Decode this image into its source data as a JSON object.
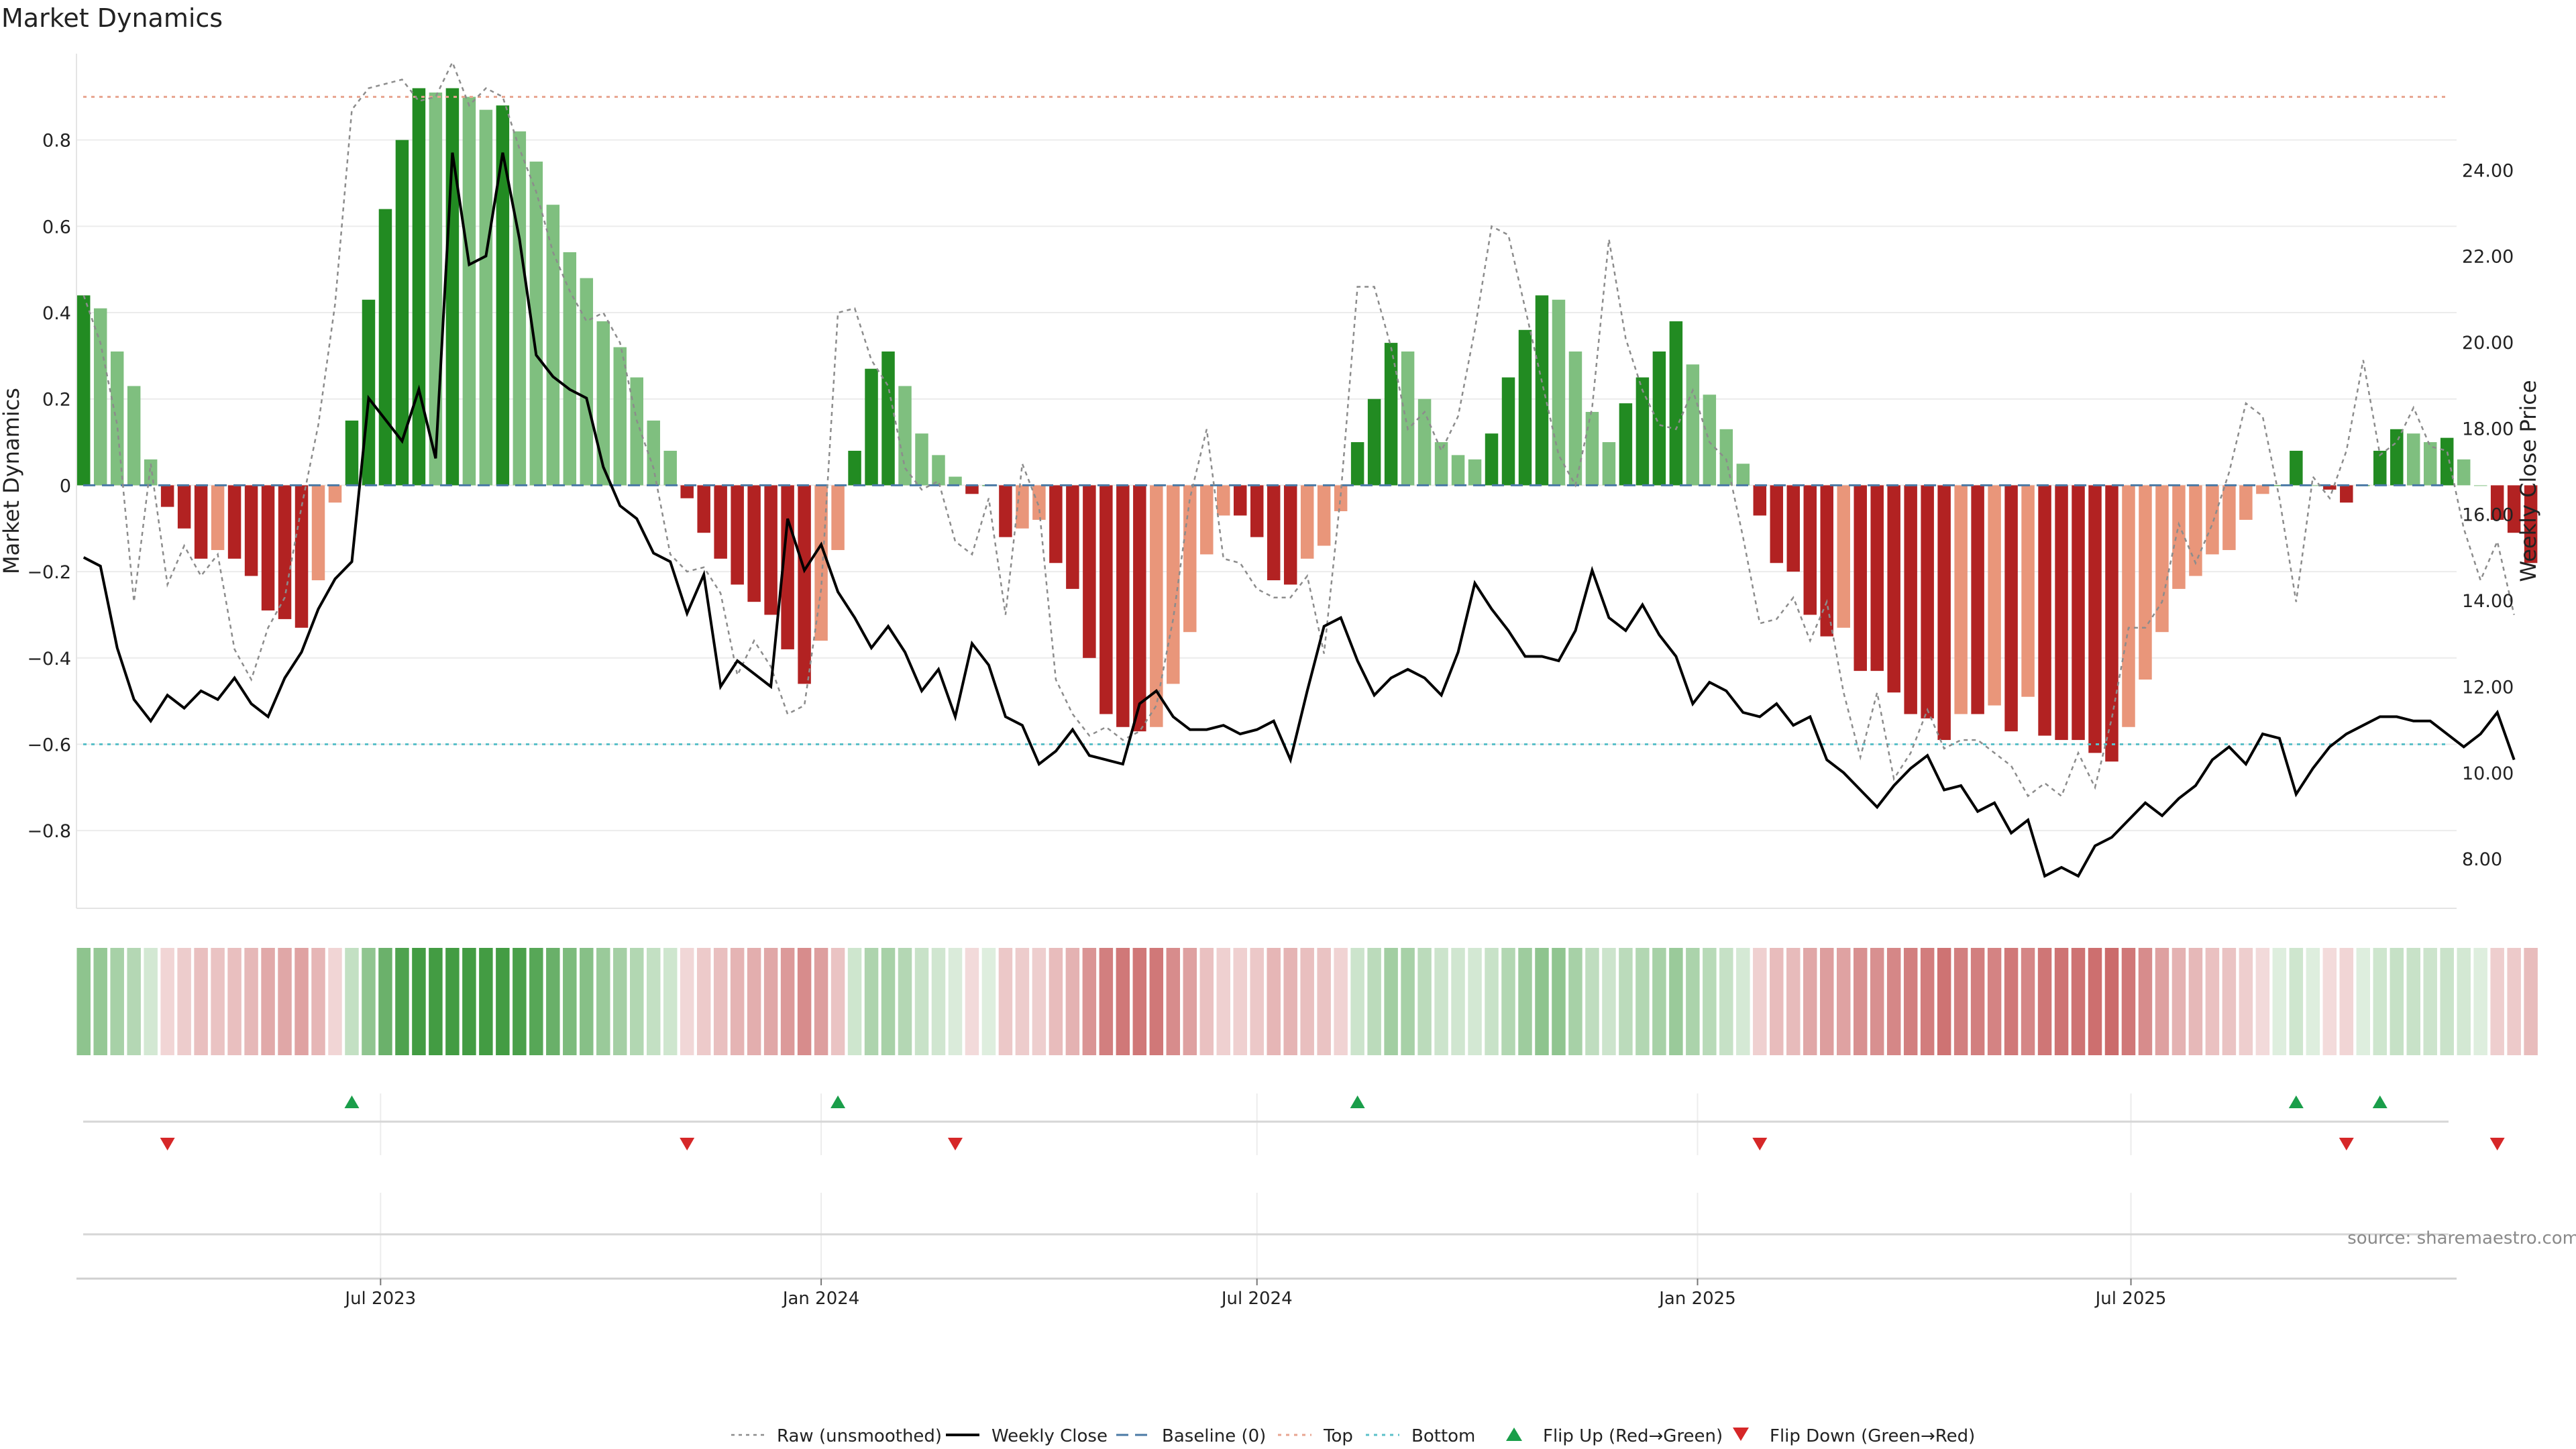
{
  "chart_data": {
    "type": "bar",
    "title": "Market Dynamics",
    "ylabel": "Market Dynamics",
    "y2label": "Weekly Close Price",
    "source_note": "source: sharemaestro.com",
    "ylim": [
      -0.98,
      1.0
    ],
    "y2lim": [
      6.85,
      26.7
    ],
    "yticks": [
      -0.8,
      -0.6,
      -0.4,
      -0.2,
      0,
      0.2,
      0.4,
      0.6,
      0.8
    ],
    "ytick_labels": [
      "−0.8",
      "−0.6",
      "−0.4",
      "−0.2",
      "0",
      "0.2",
      "0.4",
      "0.6",
      "0.8"
    ],
    "y2ticks": [
      8,
      10,
      12,
      14,
      16,
      18,
      20,
      22,
      24
    ],
    "y2tick_labels": [
      "8.00",
      "10.00",
      "12.00",
      "14.00",
      "16.00",
      "18.00",
      "20.00",
      "22.00",
      "24.00"
    ],
    "top_level": 0.9,
    "bottom_level": -0.6,
    "start_date": "2023-02-27",
    "xlim": [
      "2023-02-24",
      "2025-11-14"
    ],
    "xticks": [
      "2023-07-01",
      "2024-01-01",
      "2024-07-01",
      "2025-01-01",
      "2025-07-01"
    ],
    "xtick_labels": [
      "Jul 2023",
      "Jan 2024",
      "Jul 2024",
      "Jan 2025",
      "Jul 2025"
    ],
    "legend_position": "bottom-center",
    "legend": [
      {
        "label": "Raw (unsmoothed)",
        "style": "dotted-grey"
      },
      {
        "label": "Weekly Close",
        "style": "solid-black"
      },
      {
        "label": "Baseline (0)",
        "style": "dashed-blue"
      },
      {
        "label": "Top",
        "style": "dotted-salmon"
      },
      {
        "label": "Bottom",
        "style": "dotted-cyan"
      },
      {
        "label": "Flip Up (Red→Green)",
        "style": "triangle-up-green"
      },
      {
        "label": "Flip Down (Green→Red)",
        "style": "triangle-down-red"
      }
    ],
    "colors": {
      "strong_green": "#228b22",
      "light_green": "#7fbf7f",
      "strong_red": "#b22222",
      "light_red": "#e9967a",
      "close_line": "#000000",
      "raw_line": "#8c8c8c",
      "baseline": "#4a79a5",
      "top": "#e8a590",
      "bottom": "#5bc0c9",
      "flip_up": "#1a9e4a",
      "flip_down": "#d62728"
    },
    "series": [
      {
        "name": "Market Dynamics",
        "values": [
          0.44,
          0.41,
          0.31,
          0.23,
          0.06,
          -0.05,
          -0.1,
          -0.17,
          -0.15,
          -0.17,
          -0.21,
          -0.29,
          -0.31,
          -0.33,
          -0.22,
          -0.04,
          0.15,
          0.43,
          0.64,
          0.8,
          0.92,
          0.91,
          0.92,
          0.9,
          0.87,
          0.88,
          0.82,
          0.75,
          0.65,
          0.54,
          0.48,
          0.38,
          0.32,
          0.25,
          0.15,
          0.08,
          -0.03,
          -0.11,
          -0.17,
          -0.23,
          -0.27,
          -0.3,
          -0.38,
          -0.46,
          -0.36,
          -0.15,
          0.08,
          0.27,
          0.31,
          0.23,
          0.12,
          0.07,
          0.02,
          -0.02,
          0.0,
          -0.12,
          -0.1,
          -0.08,
          -0.18,
          -0.24,
          -0.4,
          -0.53,
          -0.56,
          -0.57,
          -0.56,
          -0.46,
          -0.34,
          -0.16,
          -0.07,
          -0.07,
          -0.12,
          -0.22,
          -0.23,
          -0.17,
          -0.14,
          -0.06,
          0.1,
          0.2,
          0.33,
          0.31,
          0.2,
          0.1,
          0.07,
          0.06,
          0.12,
          0.25,
          0.36,
          0.44,
          0.43,
          0.31,
          0.17,
          0.1,
          0.19,
          0.25,
          0.31,
          0.38,
          0.28,
          0.21,
          0.13,
          0.05,
          -0.07,
          -0.18,
          -0.2,
          -0.3,
          -0.35,
          -0.33,
          -0.43,
          -0.43,
          -0.48,
          -0.53,
          -0.54,
          -0.59,
          -0.53,
          -0.53,
          -0.51,
          -0.57,
          -0.49,
          -0.58,
          -0.59,
          -0.59,
          -0.62,
          -0.64,
          -0.56,
          -0.45,
          -0.34,
          -0.24,
          -0.21,
          -0.16,
          -0.15,
          -0.08,
          -0.02,
          0.0,
          0.08,
          0.0,
          -0.01,
          -0.04,
          0.0,
          0.08,
          0.13,
          0.12,
          0.1,
          0.11,
          0.06,
          0.0,
          -0.08,
          -0.11,
          -0.18
        ]
      },
      {
        "name": "Weekly Close",
        "values": [
          15.0,
          14.8,
          12.9,
          11.7,
          11.2,
          11.8,
          11.5,
          11.9,
          11.7,
          12.2,
          11.6,
          11.3,
          12.2,
          12.8,
          13.8,
          14.5,
          14.9,
          18.7,
          18.2,
          17.7,
          18.9,
          17.3,
          24.4,
          21.8,
          22.0,
          24.4,
          22.4,
          19.7,
          19.2,
          18.9,
          18.7,
          17.1,
          16.2,
          15.9,
          15.1,
          14.9,
          13.7,
          14.6,
          12.0,
          12.6,
          12.3,
          12.0,
          15.9,
          14.7,
          15.3,
          14.2,
          13.6,
          12.9,
          13.4,
          12.8,
          11.9,
          12.4,
          11.3,
          13.0,
          12.5,
          11.3,
          11.1,
          10.2,
          10.5,
          11.0,
          10.4,
          10.3,
          10.2,
          11.6,
          11.9,
          11.3,
          11.0,
          11.0,
          11.1,
          10.9,
          11.0,
          11.2,
          10.3,
          11.9,
          13.4,
          13.6,
          12.6,
          11.8,
          12.2,
          12.4,
          12.2,
          11.8,
          12.8,
          14.4,
          13.8,
          13.3,
          12.7,
          12.7,
          12.6,
          13.3,
          14.7,
          13.6,
          13.3,
          13.9,
          13.2,
          12.7,
          11.6,
          12.1,
          11.9,
          11.4,
          11.3,
          11.6,
          11.1,
          11.3,
          10.3,
          10.0,
          9.6,
          9.2,
          9.7,
          10.1,
          10.4,
          9.6,
          9.7,
          9.1,
          9.3,
          8.6,
          8.9,
          7.6,
          7.8,
          7.6,
          8.3,
          8.5,
          8.9,
          9.3,
          9.0,
          9.4,
          9.7,
          10.3,
          10.6,
          10.2,
          10.9,
          10.8,
          9.5,
          10.1,
          10.6,
          10.9,
          11.1,
          11.3,
          11.3,
          11.2,
          11.2,
          10.9,
          10.6,
          10.9,
          11.4,
          10.3
        ]
      },
      {
        "name": "Raw (unsmoothed)",
        "values": [
          0.44,
          0.33,
          0.14,
          -0.27,
          0.05,
          -0.23,
          -0.14,
          -0.21,
          -0.16,
          -0.38,
          -0.45,
          -0.33,
          -0.26,
          -0.05,
          0.14,
          0.42,
          0.87,
          0.92,
          0.93,
          0.94,
          0.89,
          0.9,
          0.98,
          0.88,
          0.92,
          0.9,
          0.78,
          0.68,
          0.54,
          0.45,
          0.38,
          0.4,
          0.33,
          0.15,
          0.04,
          -0.16,
          -0.2,
          -0.19,
          -0.25,
          -0.44,
          -0.36,
          -0.42,
          -0.53,
          -0.51,
          -0.24,
          0.4,
          0.41,
          0.29,
          0.23,
          0.04,
          -0.01,
          0.01,
          -0.13,
          -0.16,
          -0.03,
          -0.3,
          0.05,
          -0.05,
          -0.45,
          -0.53,
          -0.58,
          -0.56,
          -0.59,
          -0.57,
          -0.51,
          -0.31,
          -0.03,
          0.13,
          -0.17,
          -0.18,
          -0.24,
          -0.26,
          -0.26,
          -0.21,
          -0.39,
          -0.02,
          0.46,
          0.46,
          0.32,
          0.13,
          0.17,
          0.08,
          0.16,
          0.36,
          0.6,
          0.58,
          0.41,
          0.24,
          0.07,
          0.0,
          0.18,
          0.57,
          0.34,
          0.22,
          0.14,
          0.13,
          0.22,
          0.1,
          0.06,
          -0.12,
          -0.32,
          -0.31,
          -0.26,
          -0.36,
          -0.27,
          -0.48,
          -0.63,
          -0.48,
          -0.68,
          -0.62,
          -0.52,
          -0.61,
          -0.59,
          -0.59,
          -0.62,
          -0.65,
          -0.72,
          -0.69,
          -0.72,
          -0.62,
          -0.7,
          -0.54,
          -0.33,
          -0.33,
          -0.27,
          -0.09,
          -0.18,
          -0.09,
          0.03,
          0.19,
          0.16,
          -0.03,
          -0.27,
          0.02,
          -0.03,
          0.08,
          0.29,
          0.07,
          0.1,
          0.18,
          0.09,
          0.08,
          -0.1,
          -0.22,
          -0.13,
          -0.3
        ]
      }
    ],
    "flip_up_weeks": [
      16,
      45,
      76,
      132,
      137
    ],
    "flip_down_weeks": [
      5,
      36,
      52,
      100,
      135,
      144
    ]
  }
}
